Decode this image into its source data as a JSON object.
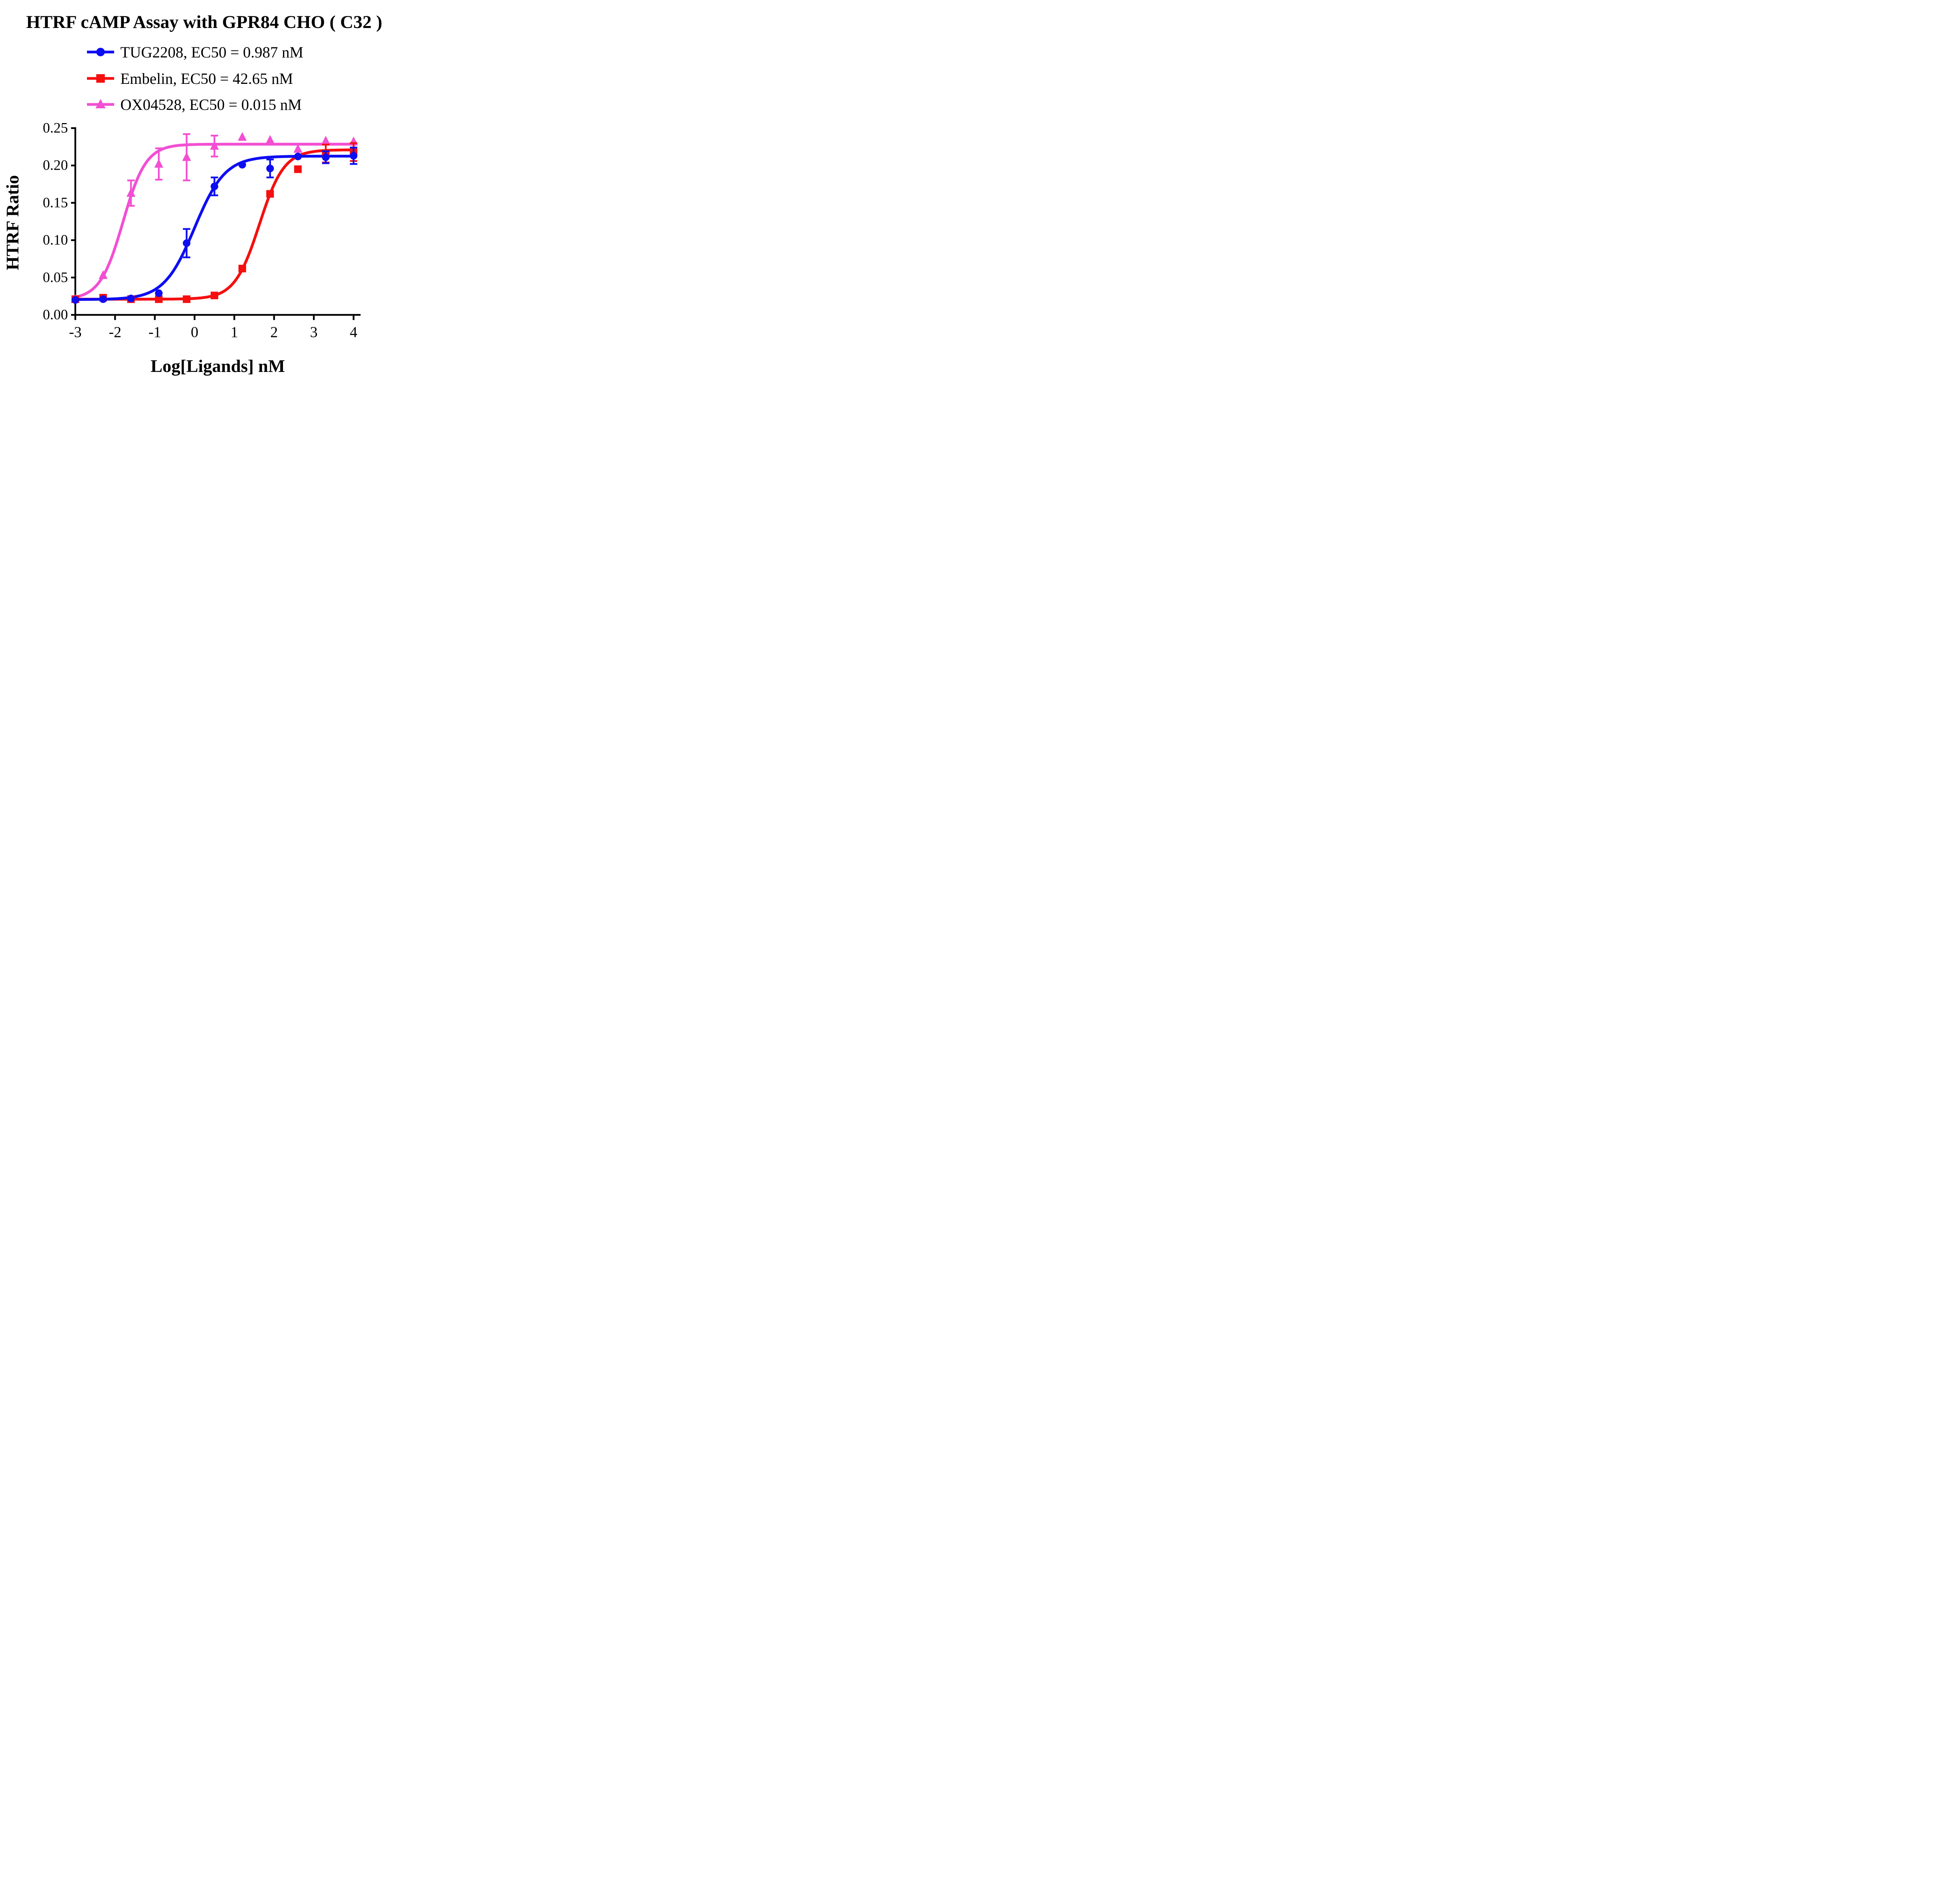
{
  "chart_data": {
    "type": "line",
    "title": "HTRF cAMP Assay with GPR84 CHO ( C32 )",
    "xlabel": "Log[Ligands] nM",
    "ylabel": "HTRF Ratio",
    "xlim": [
      -3,
      4
    ],
    "ylim": [
      0,
      0.25
    ],
    "grid": false,
    "legend_position": "top-left",
    "axis_color": "#000000",
    "background_color": "#ffffff",
    "x_tick_labels": [
      "-3",
      "-2",
      "-1",
      "0",
      "1",
      "2",
      "3",
      "4"
    ],
    "x_ticks": [
      -3,
      -2,
      -1,
      0,
      1,
      2,
      3,
      4
    ],
    "y_tick_labels": [
      "0.00",
      "0.05",
      "0.10",
      "0.15",
      "0.20",
      "0.25"
    ],
    "y_ticks": [
      0,
      0.05,
      0.1,
      0.15,
      0.2,
      0.25
    ],
    "series": [
      {
        "id": "ox04528",
        "name": "OX04528",
        "legend_label": "OX04528, EC50 = 0.015 nM",
        "legend_index": 2,
        "ec50_nM": 0.015,
        "color": "#f24fd3",
        "marker": "triangle",
        "x": [
          -3,
          -2.3,
          -1.6,
          -0.9,
          -0.2,
          0.5,
          1.2,
          1.9,
          2.6,
          3.3,
          4
        ],
        "y": [
          0.021,
          0.053,
          0.163,
          0.202,
          0.211,
          0.226,
          0.238,
          0.234,
          0.222,
          0.233,
          0.232
        ],
        "yerr": [
          0,
          0,
          0.017,
          0.021,
          0.031,
          0.014,
          0,
          0,
          0,
          0,
          0
        ],
        "fit": {
          "bottom": 0.0205,
          "top": 0.2285,
          "logec50": -1.8,
          "hill": 1.5
        }
      },
      {
        "id": "embelin",
        "name": "Embelin",
        "legend_label": "Embelin, EC50 = 42.65 nM",
        "legend_index": 1,
        "ec50_nM": 42.65,
        "color": "#f50f0f",
        "marker": "square",
        "x": [
          -3,
          -2.3,
          -1.6,
          -0.9,
          -0.2,
          0.5,
          1.2,
          1.9,
          2.6,
          3.3,
          4
        ],
        "y": [
          0.021,
          0.023,
          0.021,
          0.021,
          0.021,
          0.026,
          0.062,
          0.162,
          0.195,
          0.216,
          0.218
        ],
        "yerr": [
          0,
          0,
          0,
          0,
          0,
          0,
          0,
          0,
          0,
          0.012,
          0.012
        ],
        "fit": {
          "bottom": 0.021,
          "top": 0.221,
          "logec50": 1.63,
          "hill": 1.4
        }
      },
      {
        "id": "tug2208",
        "name": "TUG2208",
        "legend_label": "TUG2208, EC50 = 0.987 nM",
        "legend_index": 0,
        "ec50_nM": 0.987,
        "color": "#0d0df2",
        "marker": "circle",
        "x": [
          -3,
          -2.3,
          -1.6,
          -0.9,
          -0.2,
          0.5,
          1.2,
          1.9,
          2.6,
          3.3,
          4
        ],
        "y": [
          0.02,
          0.021,
          0.022,
          0.029,
          0.096,
          0.172,
          0.201,
          0.196,
          0.212,
          0.211,
          0.213
        ],
        "yerr": [
          0,
          0,
          0,
          0,
          0.019,
          0.012,
          0,
          0.012,
          0,
          0.008,
          0.011
        ],
        "fit": {
          "bottom": 0.0205,
          "top": 0.2125,
          "logec50": 0.0,
          "hill": 1.13
        }
      }
    ]
  }
}
